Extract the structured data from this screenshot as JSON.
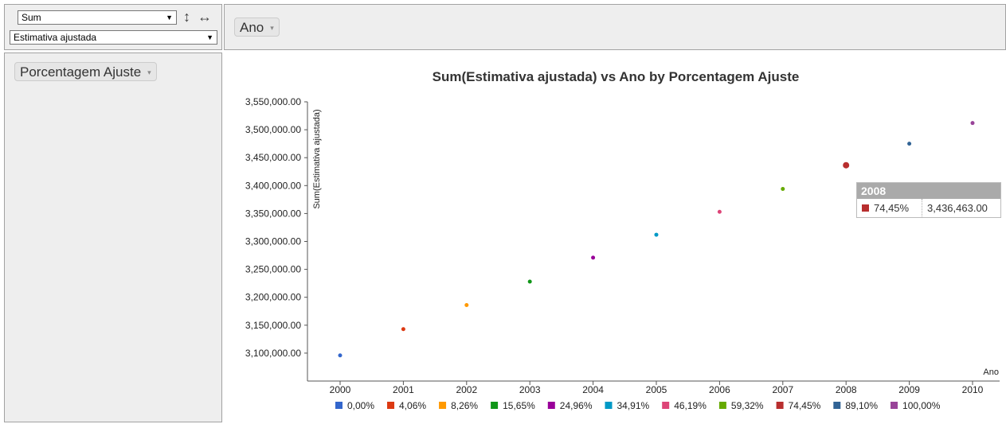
{
  "controls": {
    "aggregator": "Sum",
    "attribute": "Estimativa ajustada",
    "sort_rows_symbol": "↕",
    "sort_cols_symbol": "↔"
  },
  "col_attr": {
    "label": "Ano",
    "caret": "▾"
  },
  "row_attr": {
    "label": "Porcentagem Ajuste",
    "caret": "▾"
  },
  "dropdown_caret": "▼",
  "chart_data": {
    "type": "scatter",
    "title": "Sum(Estimativa ajustada) vs Ano by Porcentagem Ajuste",
    "xlabel": "Ano",
    "ylabel": "Sum(Estimativa ajustada)",
    "ylim": [
      3050000,
      3550000
    ],
    "yticks": [
      "3,100,000.00",
      "3,150,000.00",
      "3,200,000.00",
      "3,250,000.00",
      "3,300,000.00",
      "3,350,000.00",
      "3,400,000.00",
      "3,450,000.00",
      "3,500,000.00",
      "3,550,000.00"
    ],
    "ytick_values": [
      3100000,
      3150000,
      3200000,
      3250000,
      3300000,
      3350000,
      3400000,
      3450000,
      3500000,
      3550000
    ],
    "categories": [
      "2000",
      "2001",
      "2002",
      "2003",
      "2004",
      "2005",
      "2006",
      "2007",
      "2008",
      "2009",
      "2010"
    ],
    "legend_position": "bottom",
    "series": [
      {
        "name": "0,00%",
        "x": "2000",
        "y": 3096000,
        "color": "#3366CC"
      },
      {
        "name": "4,06%",
        "x": "2001",
        "y": 3143000,
        "color": "#DC3912"
      },
      {
        "name": "8,26%",
        "x": "2002",
        "y": 3186000,
        "color": "#FF9900"
      },
      {
        "name": "15,65%",
        "x": "2003",
        "y": 3228000,
        "color": "#109618"
      },
      {
        "name": "24,96%",
        "x": "2004",
        "y": 3271000,
        "color": "#990099"
      },
      {
        "name": "34,91%",
        "x": "2005",
        "y": 3312000,
        "color": "#0099C6"
      },
      {
        "name": "46,19%",
        "x": "2006",
        "y": 3353000,
        "color": "#DD4477"
      },
      {
        "name": "59,32%",
        "x": "2007",
        "y": 3394000,
        "color": "#66AA00"
      },
      {
        "name": "74,45%",
        "x": "2008",
        "y": 3436463,
        "color": "#B82E2E"
      },
      {
        "name": "89,10%",
        "x": "2009",
        "y": 3475000,
        "color": "#316395"
      },
      {
        "name": "100,00%",
        "x": "2010",
        "y": 3512000,
        "color": "#994499"
      }
    ]
  },
  "tooltip": {
    "year": "2008",
    "series": "74,45%",
    "value": "3,436,463.00",
    "color": "#B82E2E"
  }
}
